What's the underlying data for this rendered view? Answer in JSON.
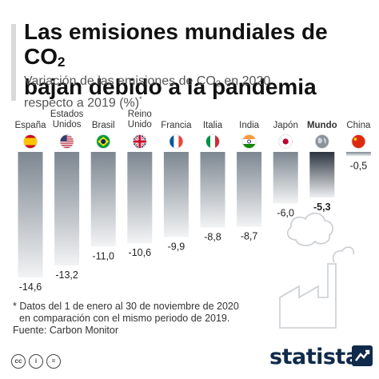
{
  "header": {
    "title_part1": "Las emisiones mundiales de CO",
    "title_sub": "2",
    "title_line2": "bajan debido a la pandemia",
    "subtitle_part1": "Variación de las emisiones de CO",
    "subtitle_sub": "2",
    "subtitle_part2": " en 2020",
    "subtitle_line2": "respecto a 2019 (%)",
    "subtitle_mark": "*"
  },
  "chart_data": {
    "type": "bar",
    "categories": [
      {
        "label": [
          "España"
        ],
        "flag": "spain-flag",
        "value": -14.6,
        "value_label": "-14,6",
        "highlight": false
      },
      {
        "label": [
          "Estados",
          "Unidos"
        ],
        "flag": "usa-flag",
        "value": -13.2,
        "value_label": "-13,2",
        "highlight": false
      },
      {
        "label": [
          "Brasil"
        ],
        "flag": "brazil-flag",
        "value": -11.0,
        "value_label": "-11,0",
        "highlight": false
      },
      {
        "label": [
          "Reino",
          "Unido"
        ],
        "flag": "uk-flag",
        "value": -10.6,
        "value_label": "-10,6",
        "highlight": false
      },
      {
        "label": [
          "Francia"
        ],
        "flag": "france-flag",
        "value": -9.9,
        "value_label": "-9,9",
        "highlight": false
      },
      {
        "label": [
          "Italia"
        ],
        "flag": "italy-flag",
        "value": -8.8,
        "value_label": "-8,8",
        "highlight": false
      },
      {
        "label": [
          "India"
        ],
        "flag": "india-flag",
        "value": -8.7,
        "value_label": "-8,7",
        "highlight": false
      },
      {
        "label": [
          "Japón"
        ],
        "flag": "japan-flag",
        "value": -6.0,
        "value_label": "-6,0",
        "highlight": false
      },
      {
        "label": [
          "Mundo"
        ],
        "flag": "globe-icon",
        "value": -5.3,
        "value_label": "-5,3",
        "highlight": true
      },
      {
        "label": [
          "China"
        ],
        "flag": "china-flag",
        "value": -0.5,
        "value_label": "-0,5",
        "highlight": false
      }
    ],
    "ylim": [
      -15,
      0
    ],
    "grid": false,
    "legend": "none",
    "colors": {
      "bar_top": "#7d8791",
      "bar_bottom": "#f2f3f4",
      "highlight_top": "#2b3440",
      "highlight_bottom": "#eef0f2"
    }
  },
  "footnote": {
    "line1": "* Datos del 1 de enero al 30 de noviembre de 2020",
    "line2": "en comparación con el mismo periodo de 2019.",
    "source": "Fuente: Carbon Monitor"
  },
  "branding": {
    "logo": "statista",
    "license_icons": [
      "cc-icon",
      "by-icon",
      "nd-icon"
    ],
    "license_text": [
      "cc",
      "i",
      "="
    ]
  }
}
